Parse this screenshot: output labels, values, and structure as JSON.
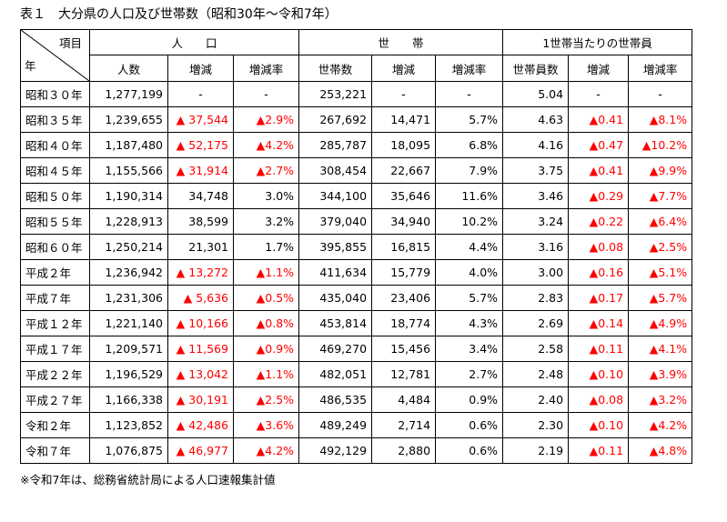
{
  "title": "表１　大分県の人口及び世帯数（昭和30年～令和7年）",
  "header": {
    "corner_item": "項目",
    "corner_year": "年",
    "group_population": "人　　口",
    "group_households": "世　　帯",
    "group_per_household": "1世帯当たりの世帯員",
    "sub": [
      "人数",
      "増減",
      "増減率",
      "世帯数",
      "増減",
      "増減率",
      "世帯員数",
      "増減",
      "増減率"
    ]
  },
  "rows": [
    {
      "year": "昭和３０年",
      "pop": "1,277,199",
      "pop_chg": "-",
      "pop_rate": "-",
      "hh": "253,221",
      "hh_chg": "-",
      "hh_rate": "-",
      "mem": "5.04",
      "mem_chg": "-",
      "mem_rate": "-"
    },
    {
      "year": "昭和３５年",
      "pop": "1,239,655",
      "pop_chg": "▲ 37,544",
      "pop_rate": "▲2.9%",
      "hh": "267,692",
      "hh_chg": "14,471",
      "hh_rate": "5.7%",
      "mem": "4.63",
      "mem_chg": "▲0.41",
      "mem_rate": "▲8.1%"
    },
    {
      "year": "昭和４０年",
      "pop": "1,187,480",
      "pop_chg": "▲ 52,175",
      "pop_rate": "▲4.2%",
      "hh": "285,787",
      "hh_chg": "18,095",
      "hh_rate": "6.8%",
      "mem": "4.16",
      "mem_chg": "▲0.47",
      "mem_rate": "▲10.2%"
    },
    {
      "year": "昭和４５年",
      "pop": "1,155,566",
      "pop_chg": "▲ 31,914",
      "pop_rate": "▲2.7%",
      "hh": "308,454",
      "hh_chg": "22,667",
      "hh_rate": "7.9%",
      "mem": "3.75",
      "mem_chg": "▲0.41",
      "mem_rate": "▲9.9%"
    },
    {
      "year": "昭和５０年",
      "pop": "1,190,314",
      "pop_chg": "34,748",
      "pop_rate": "3.0%",
      "hh": "344,100",
      "hh_chg": "35,646",
      "hh_rate": "11.6%",
      "mem": "3.46",
      "mem_chg": "▲0.29",
      "mem_rate": "▲7.7%"
    },
    {
      "year": "昭和５５年",
      "pop": "1,228,913",
      "pop_chg": "38,599",
      "pop_rate": "3.2%",
      "hh": "379,040",
      "hh_chg": "34,940",
      "hh_rate": "10.2%",
      "mem": "3.24",
      "mem_chg": "▲0.22",
      "mem_rate": "▲6.4%"
    },
    {
      "year": "昭和６０年",
      "pop": "1,250,214",
      "pop_chg": "21,301",
      "pop_rate": "1.7%",
      "hh": "395,855",
      "hh_chg": "16,815",
      "hh_rate": "4.4%",
      "mem": "3.16",
      "mem_chg": "▲0.08",
      "mem_rate": "▲2.5%"
    },
    {
      "year": "平成２年",
      "pop": "1,236,942",
      "pop_chg": "▲ 13,272",
      "pop_rate": "▲1.1%",
      "hh": "411,634",
      "hh_chg": "15,779",
      "hh_rate": "4.0%",
      "mem": "3.00",
      "mem_chg": "▲0.16",
      "mem_rate": "▲5.1%"
    },
    {
      "year": "平成７年",
      "pop": "1,231,306",
      "pop_chg": "▲ 5,636",
      "pop_rate": "▲0.5%",
      "hh": "435,040",
      "hh_chg": "23,406",
      "hh_rate": "5.7%",
      "mem": "2.83",
      "mem_chg": "▲0.17",
      "mem_rate": "▲5.7%"
    },
    {
      "year": "平成１２年",
      "pop": "1,221,140",
      "pop_chg": "▲ 10,166",
      "pop_rate": "▲0.8%",
      "hh": "453,814",
      "hh_chg": "18,774",
      "hh_rate": "4.3%",
      "mem": "2.69",
      "mem_chg": "▲0.14",
      "mem_rate": "▲4.9%"
    },
    {
      "year": "平成１７年",
      "pop": "1,209,571",
      "pop_chg": "▲ 11,569",
      "pop_rate": "▲0.9%",
      "hh": "469,270",
      "hh_chg": "15,456",
      "hh_rate": "3.4%",
      "mem": "2.58",
      "mem_chg": "▲0.11",
      "mem_rate": "▲4.1%"
    },
    {
      "year": "平成２２年",
      "pop": "1,196,529",
      "pop_chg": "▲ 13,042",
      "pop_rate": "▲1.1%",
      "hh": "482,051",
      "hh_chg": "12,781",
      "hh_rate": "2.7%",
      "mem": "2.48",
      "mem_chg": "▲0.10",
      "mem_rate": "▲3.9%"
    },
    {
      "year": "平成２７年",
      "pop": "1,166,338",
      "pop_chg": "▲ 30,191",
      "pop_rate": "▲2.5%",
      "hh": "486,535",
      "hh_chg": "4,484",
      "hh_rate": "0.9%",
      "mem": "2.40",
      "mem_chg": "▲0.08",
      "mem_rate": "▲3.2%"
    },
    {
      "year": "令和２年",
      "pop": "1,123,852",
      "pop_chg": "▲ 42,486",
      "pop_rate": "▲3.6%",
      "hh": "489,249",
      "hh_chg": "2,714",
      "hh_rate": "0.6%",
      "mem": "2.30",
      "mem_chg": "▲0.10",
      "mem_rate": "▲4.2%"
    },
    {
      "year": "令和７年",
      "pop": "1,076,875",
      "pop_chg": "▲ 46,977",
      "pop_rate": "▲4.2%",
      "hh": "492,129",
      "hh_chg": "2,880",
      "hh_rate": "0.6%",
      "mem": "2.19",
      "mem_chg": "▲0.11",
      "mem_rate": "▲4.8%"
    }
  ],
  "note": "※令和7年は、総務省統計局による人口速報集計値",
  "colors": {
    "negative": "#ff0000",
    "text": "#000000",
    "border": "#000000"
  }
}
